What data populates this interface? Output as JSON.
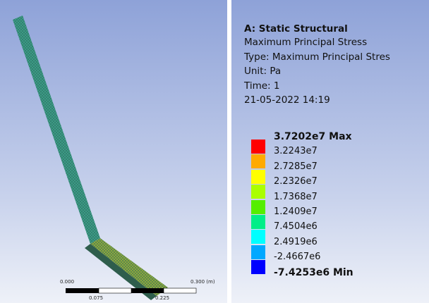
{
  "scale_bar": {
    "left_label": "0.000",
    "right_label": "0.300 (m)",
    "lower_labels": [
      "0.075",
      "0.225"
    ]
  },
  "info": {
    "title": "A: Static Structural",
    "lines": [
      "Maximum Principal Stress",
      "Type: Maximum Principal Stres",
      "Unit: Pa",
      "Time: 1",
      "21-05-2022 14:19"
    ]
  },
  "legend": {
    "labels": [
      "3.7202e7 Max",
      "3.2243e7",
      "2.7285e7",
      "2.2326e7",
      "1.7368e7",
      "1.2409e7",
      "7.4504e6",
      "2.4919e6",
      "-2.4667e6",
      "-7.4253e6 Min"
    ],
    "colors": [
      "#ff0000",
      "#ffaa00",
      "#ffff00",
      "#aaff00",
      "#55ee00",
      "#00ee88",
      "#00ffff",
      "#00a8ff",
      "#0000ff"
    ]
  }
}
